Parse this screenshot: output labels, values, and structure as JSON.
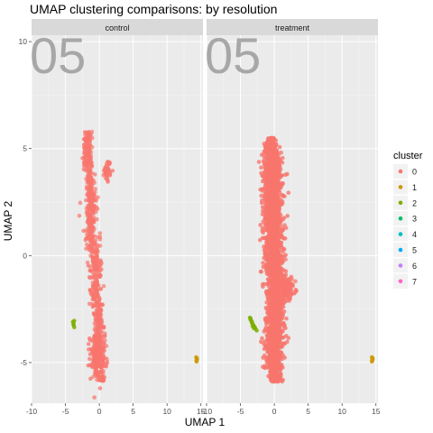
{
  "chart_data": {
    "type": "scatter",
    "title": "UMAP clustering comparisons: by resolution",
    "xlabel": "UMAP 1",
    "ylabel": "UMAP 2",
    "xlim": [
      -10,
      15.3
    ],
    "ylim": [
      -6.9,
      10.3
    ],
    "xticks": [
      -10,
      -5,
      0,
      5,
      10,
      15
    ],
    "yticks": [
      -5,
      0,
      5,
      10
    ],
    "grid": true,
    "panel_watermark": "05",
    "facets": [
      {
        "label": "control",
        "clusters": [
          {
            "name": "0",
            "mode": "sparse",
            "spine": [
              [
                5.8,
                -1.6,
                0.45
              ],
              [
                5.0,
                -1.8,
                0.55
              ],
              [
                4.0,
                -1.6,
                0.65
              ],
              [
                3.0,
                -1.2,
                0.7
              ],
              [
                2.0,
                -1.2,
                0.75
              ],
              [
                1.0,
                -1.3,
                0.8
              ],
              [
                0.0,
                -0.6,
                0.8
              ],
              [
                -1.0,
                -0.5,
                0.75
              ],
              [
                -2.0,
                -0.4,
                0.7
              ],
              [
                -3.0,
                0.0,
                0.65
              ],
              [
                -4.0,
                0.1,
                0.85
              ],
              [
                -5.0,
                0.0,
                1.05
              ],
              [
                -5.9,
                0.3,
                0.6
              ]
            ],
            "extra_blobs": [
              [
                4.0,
                1.2,
                0.5,
                0.5,
                40
              ],
              [
                -4.7,
                -0.5,
                1.0,
                0.9,
                120
              ]
            ],
            "n": 780
          },
          {
            "name": "2",
            "points": [
              [
                -3.9,
                -3.1
              ],
              [
                -3.8,
                -3.25
              ],
              [
                -3.7,
                -3.35
              ],
              [
                -3.8,
                -3.2
              ],
              [
                -3.7,
                -3.05
              ]
            ]
          },
          {
            "name": "1",
            "points": [
              [
                14.3,
                -4.75
              ],
              [
                14.4,
                -4.85
              ],
              [
                14.35,
                -4.9
              ],
              [
                14.4,
                -4.8
              ],
              [
                14.35,
                -4.95
              ]
            ]
          }
        ]
      },
      {
        "label": "treatment",
        "clusters": [
          {
            "name": "0",
            "mode": "dense",
            "spine": [
              [
                5.5,
                -0.5,
                0.6
              ],
              [
                5.0,
                -0.4,
                1.0
              ],
              [
                4.0,
                -0.3,
                1.3
              ],
              [
                3.0,
                -0.2,
                1.35
              ],
              [
                2.0,
                -0.3,
                1.3
              ],
              [
                1.0,
                -0.1,
                1.3
              ],
              [
                0.0,
                0.0,
                1.2
              ],
              [
                -1.0,
                0.1,
                1.2
              ],
              [
                -2.0,
                0.2,
                1.2
              ],
              [
                -3.0,
                0.1,
                1.2
              ],
              [
                -4.0,
                0.0,
                1.2
              ],
              [
                -5.0,
                0.0,
                1.1
              ],
              [
                -5.9,
                0.1,
                0.7
              ]
            ],
            "extra_blobs": [
              [
                -1.5,
                1.9,
                0.5,
                1.2,
                120
              ]
            ],
            "n": 2400
          },
          {
            "name": "2",
            "points": [
              [
                -3.6,
                -2.9
              ],
              [
                -3.5,
                -3.0
              ],
              [
                -3.3,
                -3.1
              ],
              [
                -3.2,
                -3.2
              ],
              [
                -3.0,
                -3.3
              ],
              [
                -2.8,
                -3.4
              ],
              [
                -3.4,
                -3.05
              ],
              [
                -3.1,
                -3.25
              ],
              [
                -2.9,
                -3.35
              ],
              [
                -3.5,
                -2.95
              ],
              [
                -3.3,
                -3.15
              ],
              [
                -2.6,
                -3.5
              ],
              [
                -3.2,
                -3.3
              ],
              [
                -3.0,
                -3.4
              ]
            ]
          },
          {
            "name": "1",
            "points": [
              [
                14.4,
                -4.75
              ],
              [
                14.5,
                -4.85
              ],
              [
                14.45,
                -4.9
              ],
              [
                14.5,
                -4.8
              ],
              [
                14.4,
                -4.95
              ]
            ]
          }
        ]
      }
    ],
    "legend": {
      "title": "cluster",
      "position": "right",
      "entries": [
        {
          "name": "0",
          "color": "#F8766D"
        },
        {
          "name": "1",
          "color": "#CD9600"
        },
        {
          "name": "2",
          "color": "#7CAE00"
        },
        {
          "name": "3",
          "color": "#00BE67"
        },
        {
          "name": "4",
          "color": "#00BFC4"
        },
        {
          "name": "5",
          "color": "#00A9FF"
        },
        {
          "name": "6",
          "color": "#C77CFF"
        },
        {
          "name": "7",
          "color": "#FF61CC"
        }
      ]
    },
    "colors": {
      "panel_bg": "#EBEBEB",
      "strip_bg": "#D9D9D9",
      "grid_major": "#FFFFFF",
      "tick_text": "#4D4D4D",
      "watermark": "#A0A0A0"
    }
  }
}
